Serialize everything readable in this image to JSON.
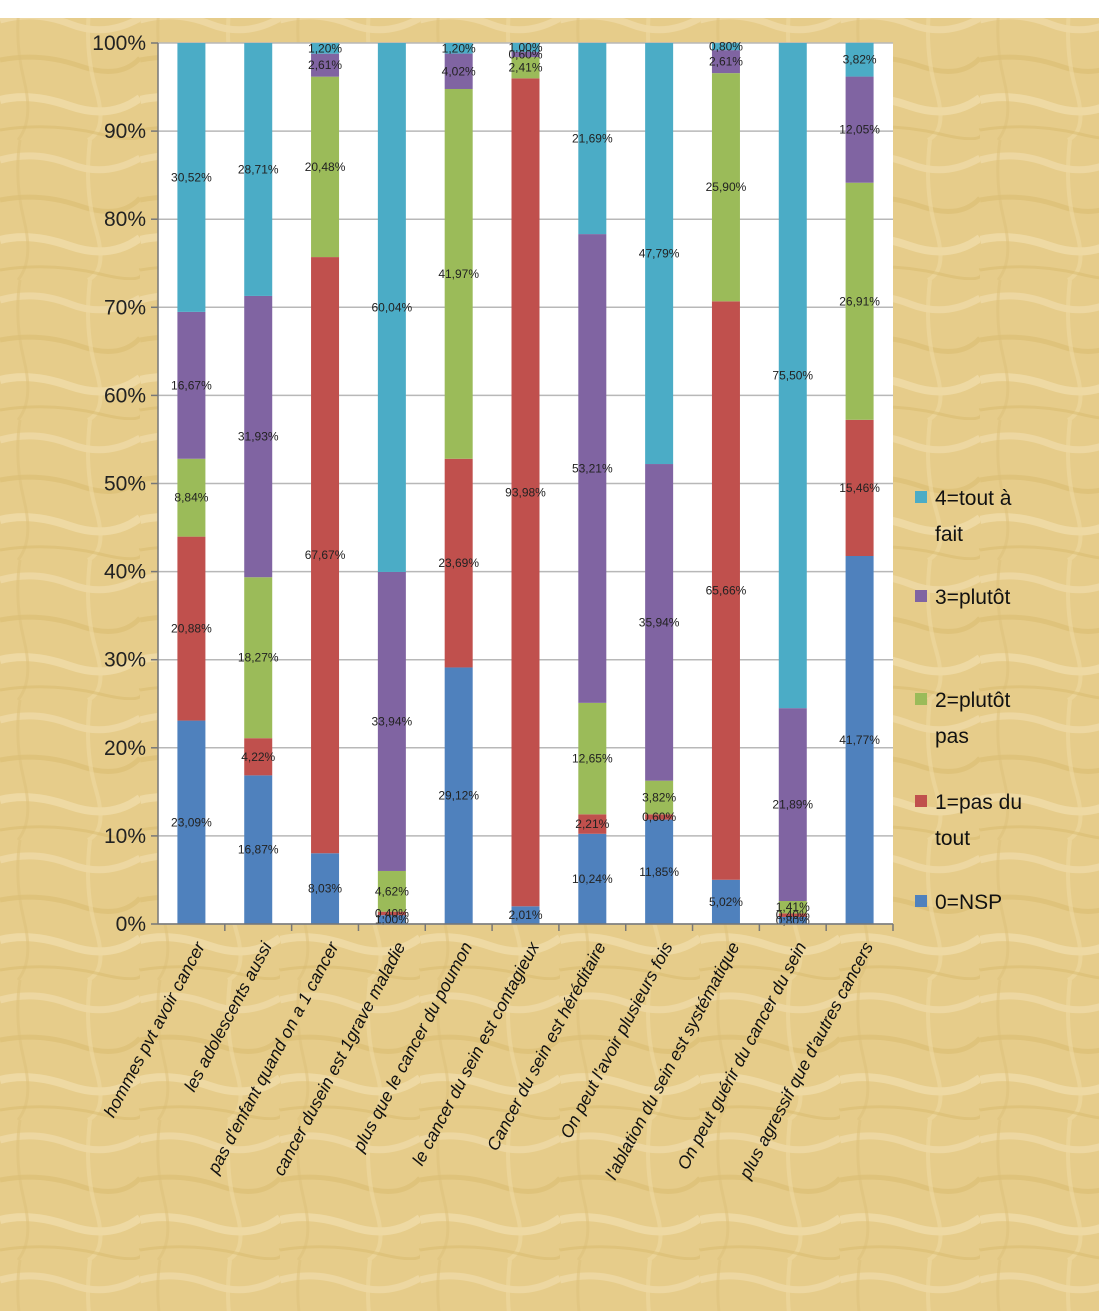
{
  "chart_data": {
    "type": "bar",
    "stacked": true,
    "title": "",
    "xlabel": "",
    "ylabel": "",
    "ylim": [
      0,
      100
    ],
    "yticks": [
      "0%",
      "10%",
      "20%",
      "30%",
      "40%",
      "50%",
      "60%",
      "70%",
      "80%",
      "90%",
      "100%"
    ],
    "grid": true,
    "legend_position": "right",
    "categories": [
      "hommes pvt avoir cancer",
      "les adolescents aussi",
      "pas d'enfant quand on a 1 cancer",
      "cancer dusein est 1grave maladie",
      "plus que le cancer du poumon",
      "le cancer du sein est contagieux",
      "Cancer du sein est héréditaire",
      "On peut l'avoir plusieurs fois",
      "l'ablation du sein est systématique",
      "On peut guérir du cancer du sein",
      "plus agressif que d'autres cancers"
    ],
    "series": [
      {
        "name": "0=NSP",
        "color": "#4f81bd",
        "values": [
          23.09,
          16.87,
          8.03,
          1.0,
          29.12,
          2.01,
          10.24,
          11.85,
          5.02,
          0.8,
          41.77
        ],
        "labels": [
          "23,09%",
          "16,87%",
          "8,03%",
          "1,00%",
          "29,12%",
          "2,01%",
          "10,24%",
          "11,85%",
          "5,02%",
          "0,80%",
          "41,77%"
        ]
      },
      {
        "name": "1=pas du tout",
        "color": "#c0504d",
        "values": [
          20.88,
          4.22,
          67.67,
          0.4,
          23.69,
          93.98,
          2.21,
          0.6,
          65.66,
          0.4,
          15.46
        ],
        "labels": [
          "20,88%",
          "4,22%",
          "67,67%",
          "0,40%",
          "23,69%",
          "93,98%",
          "2,21%",
          "0,60%",
          "65,66%",
          "0,40%",
          "15,46%"
        ]
      },
      {
        "name": "2=plutôt pas",
        "color": "#9bbb59",
        "values": [
          8.84,
          18.27,
          20.48,
          4.62,
          41.97,
          2.41,
          12.65,
          3.82,
          25.9,
          1.41,
          26.91
        ],
        "labels": [
          "8,84%",
          "18,27%",
          "20,48%",
          "4,62%",
          "41,97%",
          "2,41%",
          "12,65%",
          "3,82%",
          "25,90%",
          "1,41%",
          "26,91%"
        ]
      },
      {
        "name": "3=plutôt",
        "color": "#8064a2",
        "values": [
          16.67,
          31.93,
          2.61,
          33.94,
          4.02,
          0.6,
          53.21,
          35.94,
          2.61,
          21.89,
          12.05
        ],
        "labels": [
          "16,67%",
          "31,93%",
          "2,61%",
          "33,94%",
          "4,02%",
          "0,60%",
          "53,21%",
          "35,94%",
          "2,61%",
          "21,89%",
          "12,05%"
        ]
      },
      {
        "name": "4=tout à fait",
        "color": "#4bacc6",
        "values": [
          30.52,
          28.71,
          1.2,
          60.04,
          1.2,
          1.0,
          21.69,
          47.79,
          0.8,
          75.5,
          3.82
        ],
        "labels": [
          "30,52%",
          "28,71%",
          "1,20%",
          "60,04%",
          "1,20%",
          "1,00%",
          "21,69%",
          "47,79%",
          "0,80%",
          "75,50%",
          "3,82%"
        ]
      }
    ],
    "legend": [
      {
        "label": "4=tout à fait",
        "color": "#4bacc6"
      },
      {
        "label": "3=plutôt",
        "color": "#8064a2"
      },
      {
        "label": "2=plutôt pas",
        "color": "#9bbb59"
      },
      {
        "label": "1=pas du tout",
        "color": "#c0504d"
      },
      {
        "label": "0=NSP",
        "color": "#4f81bd"
      }
    ],
    "colors": {
      "background": "#e8cf8e",
      "background_light": "#f3e2b0",
      "plot_area": "#ffffff",
      "gridline": "#b8b8b8"
    }
  }
}
